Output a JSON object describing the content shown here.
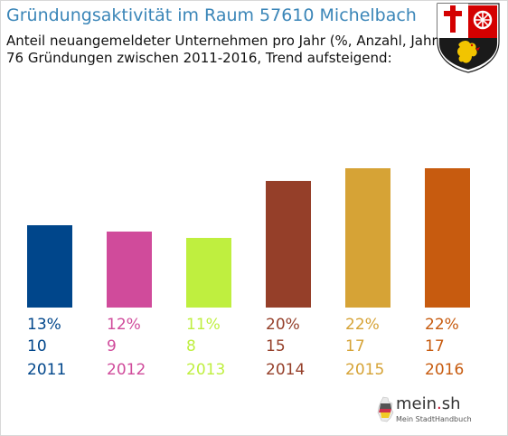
{
  "header": {
    "title": "Gründungsaktivität im Raum 57610 Michelbach",
    "subtitle_line1": "Anteil neuangemeldeter Unternehmen pro Jahr (%, Anzahl, Jahr)",
    "subtitle_line2": "76 Gründungen zwischen 2011-2016, Trend aufsteigend:"
  },
  "chart_data": {
    "type": "bar",
    "title": "Gründungsaktivität im Raum 57610 Michelbach",
    "categories": [
      "2011",
      "2012",
      "2013",
      "2014",
      "2015",
      "2016"
    ],
    "values": [
      13,
      12,
      11,
      20,
      22,
      22
    ],
    "counts": [
      10,
      9,
      8,
      15,
      17,
      17
    ],
    "percent_labels": [
      "13%",
      "12%",
      "11%",
      "20%",
      "22%",
      "22%"
    ],
    "count_labels": [
      "10",
      "9",
      "8",
      "15",
      "17",
      "17"
    ],
    "colors": [
      "#00468b",
      "#d04b9b",
      "#bfef3f",
      "#953f29",
      "#d6a336",
      "#c75b0f"
    ],
    "ylim": [
      0,
      22
    ],
    "grid": false,
    "xlabel": "",
    "ylabel": ""
  },
  "crest": {
    "name": "Rheinland-Pfalz coat of arms"
  },
  "logo": {
    "brand": "mein",
    "dot": ".",
    "tld": "sh",
    "tagline": "Mein StadtHandbuch"
  }
}
